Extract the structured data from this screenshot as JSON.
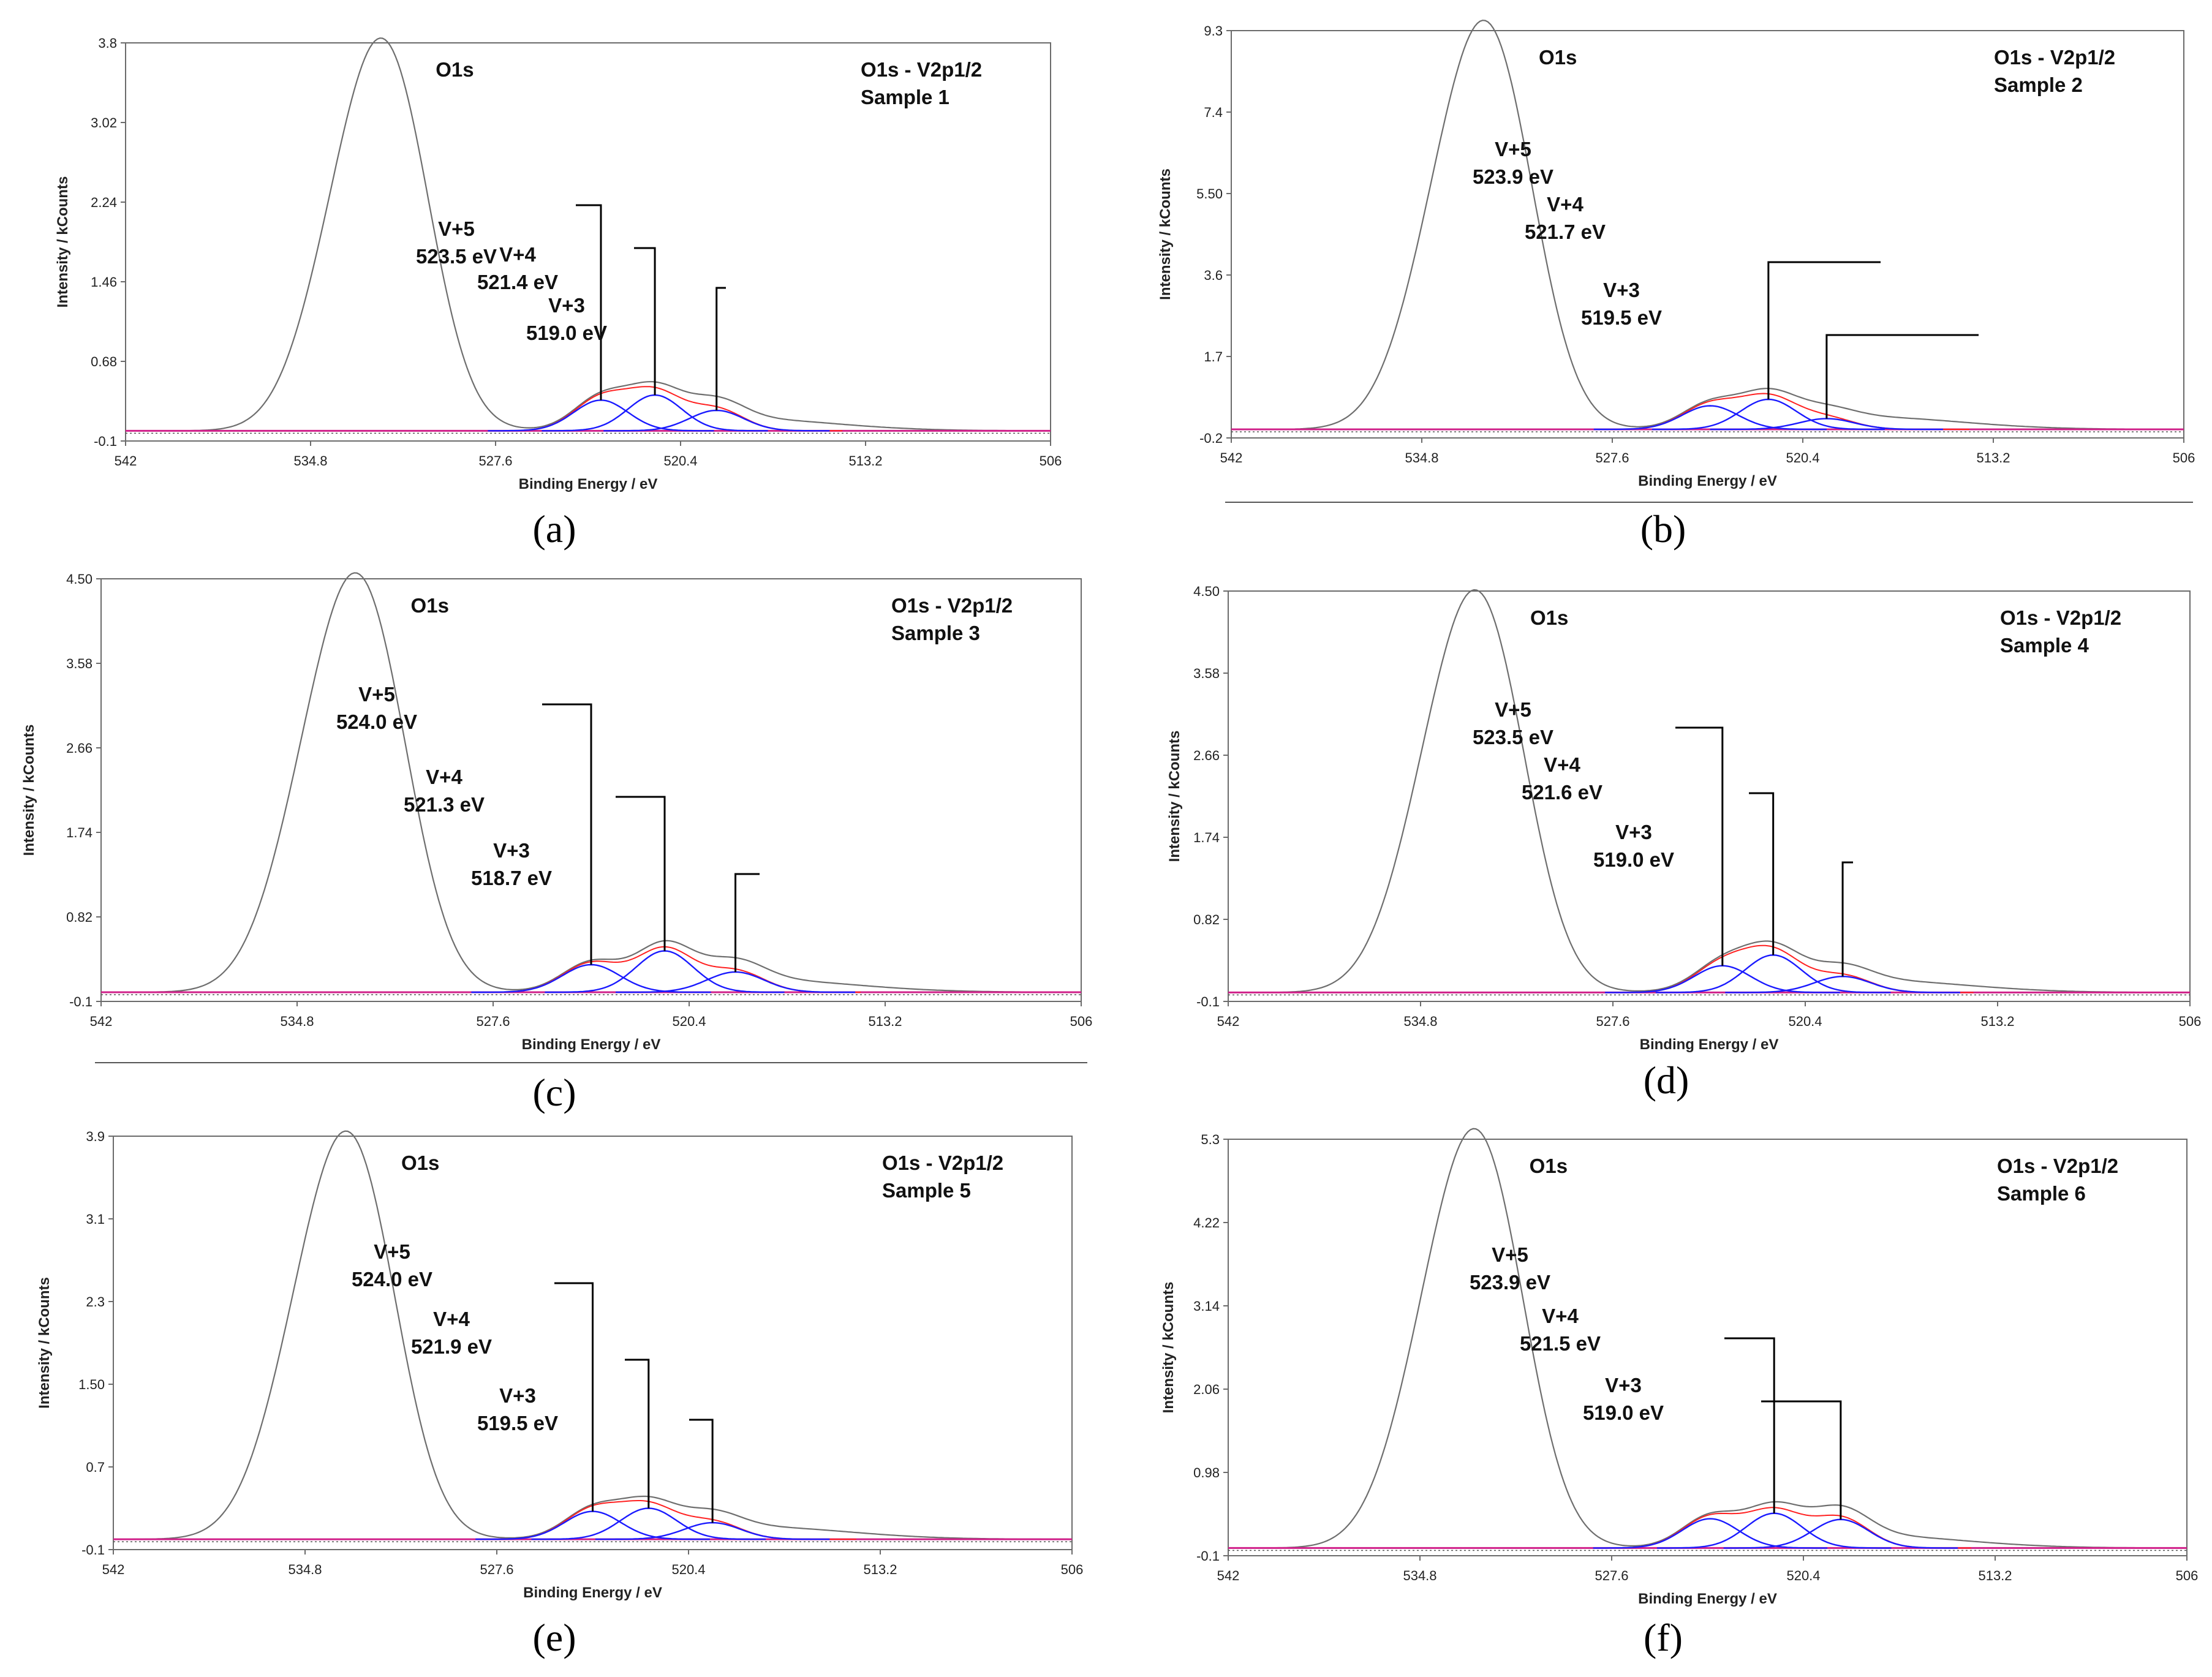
{
  "chart_data": [
    {
      "type": "line",
      "panel_label": "(a)",
      "box_title": "O1s - V2p1/2",
      "sample": "Sample 1",
      "xlabel": "Binding Energy / eV",
      "ylabel": "Intensity / kCounts",
      "x_ticks": [
        "542",
        "534.8",
        "527.6",
        "520.4",
        "513.2",
        "506"
      ],
      "y_ticks": [
        "-0.1",
        "0.68",
        "1.46",
        "2.24",
        "3.02",
        "3.8"
      ],
      "xlim": [
        542,
        506
      ],
      "ylim": [
        -0.1,
        3.8
      ],
      "o1s": {
        "label": "O1s",
        "center": 531.6,
        "height": 3.75
      },
      "components": [
        {
          "species": "V+5",
          "energy_label": "523.5 eV",
          "center": 523.5,
          "height": 0.3
        },
        {
          "species": "V+4",
          "energy_label": "521.4 eV",
          "center": 521.4,
          "height": 0.35
        },
        {
          "species": "V+3",
          "energy_label": "519.0 eV",
          "center": 519.0,
          "height": 0.2
        }
      ]
    },
    {
      "type": "line",
      "panel_label": "(b)",
      "box_title": "O1s - V2p1/2",
      "sample": "Sample 2",
      "xlabel": "Binding Energy / eV",
      "ylabel": "Intensity / kCounts",
      "x_ticks": [
        "542",
        "534.8",
        "527.6",
        "520.4",
        "513.2",
        "506"
      ],
      "y_ticks": [
        "-0.2",
        "1.7",
        "3.6",
        "5.50",
        "7.4",
        "9.3"
      ],
      "xlim": [
        542,
        506
      ],
      "ylim": [
        -0.2,
        9.3
      ],
      "o1s": {
        "label": "O1s",
        "center": 532.0,
        "height": 9.3
      },
      "components": [
        {
          "species": "V+5",
          "energy_label": "523.9 eV",
          "center": 523.9,
          "height": 0.55
        },
        {
          "species": "V+4",
          "energy_label": "521.7 eV",
          "center": 521.7,
          "height": 0.7
        },
        {
          "species": "V+3",
          "energy_label": "519.5 eV",
          "center": 519.5,
          "height": 0.25
        }
      ]
    },
    {
      "type": "line",
      "panel_label": "(c)",
      "box_title": "O1s - V2p1/2",
      "sample": "Sample 3",
      "xlabel": "Binding Energy / eV",
      "ylabel": "Intensity / kCounts",
      "x_ticks": [
        "542",
        "534.8",
        "527.6",
        "520.4",
        "513.2",
        "506"
      ],
      "y_ticks": [
        "-0.1",
        "0.82",
        "1.74",
        "2.66",
        "3.58",
        "4.50"
      ],
      "xlim": [
        542,
        506
      ],
      "ylim": [
        -0.1,
        4.5
      ],
      "o1s": {
        "label": "O1s",
        "center": 532.2,
        "height": 4.45
      },
      "components": [
        {
          "species": "V+5",
          "energy_label": "524.0 eV",
          "center": 524.0,
          "height": 0.3
        },
        {
          "species": "V+4",
          "energy_label": "521.3 eV",
          "center": 521.3,
          "height": 0.45
        },
        {
          "species": "V+3",
          "energy_label": "518.7 eV",
          "center": 518.7,
          "height": 0.22
        }
      ]
    },
    {
      "type": "line",
      "panel_label": "(d)",
      "box_title": "O1s - V2p1/2",
      "sample": "Sample 4",
      "xlabel": "Binding Energy / eV",
      "ylabel": "Intensity / kCounts",
      "x_ticks": [
        "542",
        "534.8",
        "527.6",
        "520.4",
        "513.2",
        "506"
      ],
      "y_ticks": [
        "-0.1",
        "0.82",
        "1.74",
        "2.66",
        "3.58",
        "4.50"
      ],
      "xlim": [
        542,
        506
      ],
      "ylim": [
        -0.1,
        4.5
      ],
      "o1s": {
        "label": "O1s",
        "center": 532.3,
        "height": 4.4
      },
      "components": [
        {
          "species": "V+5",
          "energy_label": "523.5 eV",
          "center": 523.5,
          "height": 0.3
        },
        {
          "species": "V+4",
          "energy_label": "521.6 eV",
          "center": 521.6,
          "height": 0.42
        },
        {
          "species": "V+3",
          "energy_label": "519.0 eV",
          "center": 519.0,
          "height": 0.18
        }
      ]
    },
    {
      "type": "line",
      "panel_label": "(e)",
      "box_title": "O1s - V2p1/2",
      "sample": "Sample 5",
      "xlabel": "Binding Energy / eV",
      "ylabel": "Intensity / kCounts",
      "x_ticks": [
        "542",
        "534.8",
        "527.6",
        "520.4",
        "513.2",
        "506"
      ],
      "y_ticks": [
        "-0.1",
        "0.7",
        "1.50",
        "2.3",
        "3.1",
        "3.9"
      ],
      "xlim": [
        542,
        506
      ],
      "ylim": [
        -0.1,
        3.9
      ],
      "o1s": {
        "label": "O1s",
        "center": 532.8,
        "height": 3.85
      },
      "components": [
        {
          "species": "V+5",
          "energy_label": "524.0 eV",
          "center": 524.0,
          "height": 0.27
        },
        {
          "species": "V+4",
          "energy_label": "521.9 eV",
          "center": 521.9,
          "height": 0.3
        },
        {
          "species": "V+3",
          "energy_label": "519.5 eV",
          "center": 519.5,
          "height": 0.16
        }
      ]
    },
    {
      "type": "line",
      "panel_label": "(f)",
      "box_title": "O1s - V2p1/2",
      "sample": "Sample 6",
      "xlabel": "Binding Energy / eV",
      "ylabel": "Intensity / kCounts",
      "x_ticks": [
        "542",
        "534.8",
        "527.6",
        "520.4",
        "513.2",
        "506"
      ],
      "y_ticks": [
        "-0.1",
        "0.98",
        "2.06",
        "3.14",
        "4.22",
        "5.3"
      ],
      "xlim": [
        542,
        506
      ],
      "ylim": [
        -0.1,
        5.3
      ],
      "o1s": {
        "label": "O1s",
        "center": 532.3,
        "height": 5.3
      },
      "components": [
        {
          "species": "V+5",
          "energy_label": "523.9 eV",
          "center": 523.9,
          "height": 0.38
        },
        {
          "species": "V+4",
          "energy_label": "521.5 eV",
          "center": 521.5,
          "height": 0.45
        },
        {
          "species": "V+3",
          "energy_label": "519.0 eV",
          "center": 519.0,
          "height": 0.37
        }
      ]
    }
  ],
  "colors": {
    "envelope": "#ff2020",
    "component": "#1a1aff",
    "baseline": "#d0208a",
    "raw": "#6e6e6e",
    "callout": "#000000",
    "frame": "#6b6b6b"
  }
}
